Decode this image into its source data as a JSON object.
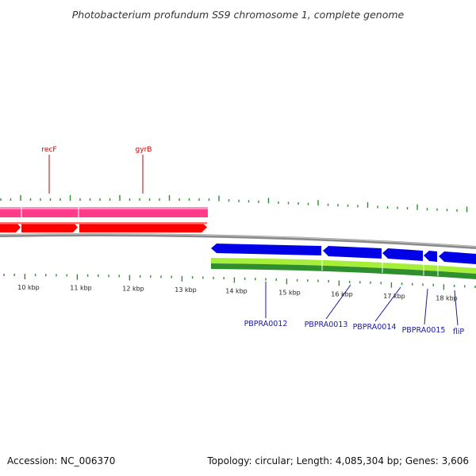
{
  "title": "Photobacterium profundum SS9 chromosome 1, complete genome",
  "footer": {
    "accession": "Accession: NC_006370",
    "summary": "Topology: circular; Length: 4,085,304 bp; Genes: 3,606"
  },
  "colors": {
    "backbone": "#8a8a8a",
    "tick": "#2e8b2e",
    "forward_gene": "#ff0000",
    "forward_feature": "#ff3b8a",
    "reverse_gene": "#0000e6",
    "reverse_feature_light": "#a6ee3a",
    "reverse_feature_dark": "#2f8f2f",
    "label_forward": "#cc0000",
    "label_reverse": "#1a1aa0"
  },
  "scale_labels": [
    "10 kbp",
    "11 kbp",
    "12 kbp",
    "13 kbp",
    "14 kbp",
    "15 kbp",
    "16 kbp",
    "17 kbp",
    "18 kbp"
  ],
  "forward_genes": [
    {
      "name": "recF",
      "labeled": true
    },
    {
      "name": "gyrB",
      "labeled": true
    }
  ],
  "reverse_genes": [
    {
      "name": "PBPRA0012"
    },
    {
      "name": "PBPRA0013"
    },
    {
      "name": "PBPRA0014"
    },
    {
      "name": "PBPRA0015"
    },
    {
      "name": "fliP"
    }
  ]
}
